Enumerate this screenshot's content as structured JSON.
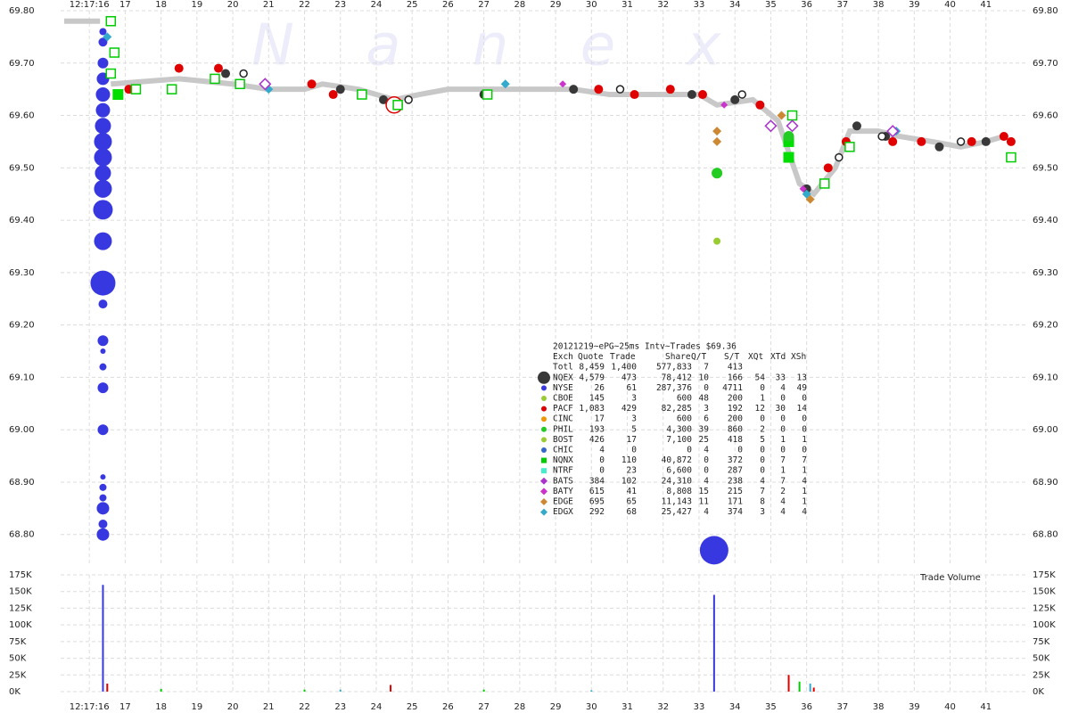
{
  "chart_data": [
    {
      "type": "scatter",
      "watermark": "N a n e x",
      "grid": true,
      "xlim": [
        15.2,
        42.1
      ],
      "xticks": [
        {
          "value": 16,
          "label": "12:17:16"
        },
        17,
        18,
        19,
        20,
        21,
        22,
        23,
        24,
        25,
        26,
        27,
        28,
        29,
        30,
        31,
        32,
        33,
        34,
        35,
        36,
        37,
        38,
        39,
        40,
        41
      ],
      "ylim": [
        68.74,
        69.8
      ],
      "yticks": [
        {
          "value": 68.8,
          "label": "68.80"
        },
        {
          "value": 68.9,
          "label": "68.90"
        },
        {
          "value": 69.0,
          "label": "69.00"
        },
        {
          "value": 69.1,
          "label": "69.10"
        },
        {
          "value": 69.2,
          "label": "69.20"
        },
        {
          "value": 69.3,
          "label": "69.30"
        },
        {
          "value": 69.4,
          "label": "69.40"
        },
        {
          "value": 69.5,
          "label": "69.50"
        },
        {
          "value": 69.6,
          "label": "69.60"
        },
        {
          "value": 69.7,
          "label": "69.70"
        },
        {
          "value": 69.8,
          "label": "69.80"
        }
      ],
      "series": [
        {
          "marker": "line",
          "color": "#c8c8c8",
          "line_width": 6,
          "x": [
            15.3,
            16.3,
            16.4,
            16.6,
            18.5,
            20,
            21,
            22,
            22.5,
            23.5,
            24.5,
            25.2,
            26,
            27,
            29.5,
            30.5,
            33,
            33.5,
            34.5,
            35.2,
            35.5,
            35.8,
            36.2,
            36.8,
            37.2,
            38,
            38.6,
            39.5,
            40.3,
            41,
            41.5
          ],
          "values": [
            69.78,
            69.78,
            null,
            69.66,
            69.67,
            69.66,
            69.65,
            69.65,
            69.66,
            69.65,
            69.63,
            69.64,
            69.65,
            69.65,
            69.65,
            69.64,
            69.64,
            69.62,
            69.63,
            69.59,
            69.53,
            69.47,
            69.45,
            69.5,
            69.57,
            69.57,
            69.56,
            69.55,
            69.54,
            69.55,
            69.56
          ]
        },
        {
          "marker": "circle",
          "color": "#3838e0",
          "x": [
            16.38,
            16.38,
            16.38,
            16.38,
            16.38,
            16.38,
            16.38,
            16.38,
            16.38,
            16.38,
            16.38,
            16.38,
            16.38,
            16.38,
            16.38,
            16.38,
            16.38,
            16.38,
            16.38,
            16.38,
            16.38,
            16.38,
            16.38,
            16.38,
            16.38,
            16.38,
            33.42
          ],
          "values": [
            69.76,
            69.74,
            69.7,
            69.67,
            69.64,
            69.61,
            69.58,
            69.55,
            69.52,
            69.49,
            69.46,
            69.42,
            69.36,
            69.28,
            69.24,
            69.17,
            69.15,
            69.12,
            69.08,
            69.0,
            68.91,
            68.89,
            68.87,
            68.85,
            68.82,
            68.8,
            68.77
          ],
          "sizes": [
            4,
            5,
            6,
            7,
            8,
            8,
            9,
            10,
            10,
            9,
            10,
            11,
            10,
            14,
            5,
            6,
            3,
            4,
            6,
            6,
            3,
            4,
            4,
            7,
            5,
            7,
            16
          ]
        },
        {
          "marker": "circle",
          "color": "#383838",
          "size": 5,
          "x": [
            19.8,
            23,
            24.2,
            27,
            29.5,
            32.8,
            34,
            36,
            37.4,
            38.2,
            39.7,
            41
          ],
          "values": [
            69.68,
            69.65,
            69.63,
            69.64,
            69.65,
            69.64,
            69.63,
            69.46,
            69.58,
            69.56,
            69.54,
            69.55
          ]
        },
        {
          "marker": "circle",
          "color": "#e00000",
          "size": 5,
          "x": [
            17.1,
            18.5,
            19.6,
            22.2,
            22.8,
            30.2,
            31.2,
            32.2,
            33.1,
            34.7,
            35.5,
            36.6,
            37.1,
            38.4,
            39.2,
            40.6,
            41.5,
            41.7
          ],
          "values": [
            69.65,
            69.69,
            69.69,
            69.66,
            69.64,
            69.65,
            69.64,
            69.65,
            69.64,
            69.62,
            69.56,
            69.5,
            69.55,
            69.55,
            69.55,
            69.55,
            69.56,
            69.55
          ]
        },
        {
          "marker": "circle",
          "color": "#e00000",
          "size": 9,
          "hollow": true,
          "x": [
            24.5
          ],
          "values": [
            69.62
          ]
        },
        {
          "marker": "circle",
          "color": "#222222",
          "size": 4,
          "hollow": true,
          "x": [
            20.3,
            24.9,
            30.8,
            34.2,
            36.9,
            38.1,
            40.3
          ],
          "values": [
            69.68,
            69.63,
            69.65,
            69.64,
            69.52,
            69.56,
            69.55
          ]
        },
        {
          "marker": "square",
          "color": "#00cc00",
          "size": 5,
          "hollow": true,
          "x": [
            16.6,
            16.7,
            16.6,
            17.3,
            18.3,
            19.5,
            20.2,
            23.6,
            24.6,
            27.1,
            35.6,
            36.5,
            37.2,
            41.7
          ],
          "values": [
            69.78,
            69.72,
            69.68,
            69.65,
            69.65,
            69.67,
            69.66,
            69.64,
            69.62,
            69.64,
            69.6,
            69.47,
            69.54,
            69.52
          ]
        },
        {
          "marker": "square",
          "color": "#00dd00",
          "size": 6,
          "x": [
            16.8,
            35.5,
            35.5
          ],
          "values": [
            69.64,
            69.52,
            69.55
          ]
        },
        {
          "marker": "circle",
          "color": "#22cc22",
          "size": 6,
          "x": [
            33.5,
            35.5
          ],
          "values": [
            69.49,
            69.56
          ]
        },
        {
          "marker": "circle",
          "color": "#99cc33",
          "size": 4,
          "x": [
            33.5
          ],
          "values": [
            69.36
          ]
        },
        {
          "marker": "diamond",
          "color": "#cc8833",
          "size": 5,
          "x": [
            33.5,
            33.5,
            35.3,
            36.1
          ],
          "values": [
            69.55,
            69.57,
            69.6,
            69.44
          ]
        },
        {
          "marker": "diamond",
          "color": "#33aacc",
          "size": 5,
          "x": [
            16.5,
            21,
            27.6,
            36,
            38.5
          ],
          "values": [
            69.75,
            69.65,
            69.66,
            69.45,
            69.57
          ]
        },
        {
          "marker": "diamond",
          "color": "#aa33cc",
          "size": 6,
          "hollow": true,
          "x": [
            20.9,
            35,
            35.6,
            38.4
          ],
          "values": [
            69.66,
            69.58,
            69.58,
            69.57
          ]
        },
        {
          "marker": "diamond",
          "color": "#cc33cc",
          "size": 4,
          "x": [
            29.2,
            33.7,
            35.9
          ],
          "values": [
            69.66,
            69.62,
            69.46
          ]
        }
      ]
    },
    {
      "type": "bar",
      "title": "Trade Volume",
      "grid": true,
      "xlim": [
        15.2,
        42.1
      ],
      "xticks": [
        {
          "value": 16,
          "label": "12:17:16"
        },
        17,
        18,
        19,
        20,
        21,
        22,
        23,
        24,
        25,
        26,
        27,
        28,
        29,
        30,
        31,
        32,
        33,
        34,
        35,
        36,
        37,
        38,
        39,
        40,
        41
      ],
      "ylim": [
        0,
        175000
      ],
      "yticks": [
        {
          "value": 0,
          "label": "0K"
        },
        {
          "value": 25000,
          "label": "25K"
        },
        {
          "value": 50000,
          "label": "50K"
        },
        {
          "value": 75000,
          "label": "75K"
        },
        {
          "value": 100000,
          "label": "100K"
        },
        {
          "value": 125000,
          "label": "125K"
        },
        {
          "value": 150000,
          "label": "150K"
        },
        {
          "value": 175000,
          "label": "175K"
        }
      ],
      "series": [
        {
          "color": "#3838e0",
          "x": [
            16.38,
            33.42
          ],
          "values": [
            160000,
            145000
          ]
        },
        {
          "color": "#e00000",
          "x": [
            16.5,
            24.4,
            35.5,
            36.2
          ],
          "values": [
            12000,
            10000,
            25000,
            6000
          ]
        },
        {
          "color": "#00cc00",
          "x": [
            18,
            22,
            27,
            35.8
          ],
          "values": [
            4000,
            3000,
            3000,
            15000
          ]
        },
        {
          "color": "#33aacc",
          "x": [
            23,
            30,
            36.1
          ],
          "values": [
            3000,
            2000,
            12000
          ]
        }
      ]
    }
  ],
  "stats_table": {
    "title": "20121219~ePG~25ms Intv~Trades $69.36",
    "header": [
      "Exch",
      "Quote",
      "Trade",
      "Share",
      "Q/T",
      "S/T",
      "XQt",
      "XTd",
      "XSh"
    ],
    "rows": [
      {
        "cells": [
          "Totl",
          "8,459",
          "1,400",
          "577,833",
          "7",
          "413"
        ]
      },
      {
        "cells": [
          "NQEX",
          "4,579",
          "473",
          "78,412",
          "10",
          "166",
          "54",
          "33",
          "13"
        ],
        "color": "#383838",
        "marker": "circle",
        "size": 7
      },
      {
        "cells": [
          "NYSE",
          "26",
          "61",
          "287,376",
          "0",
          "4711",
          "0",
          "4",
          "49"
        ],
        "color": "#3838e0",
        "marker": "circle",
        "size": 3
      },
      {
        "cells": [
          "CBOE",
          "145",
          "3",
          "600",
          "48",
          "200",
          "1",
          "0",
          "0"
        ],
        "color": "#99cc33",
        "marker": "circle",
        "size": 3
      },
      {
        "cells": [
          "PACF",
          "1,083",
          "429",
          "82,285",
          "3",
          "192",
          "12",
          "30",
          "14"
        ],
        "color": "#e00000",
        "marker": "circle",
        "size": 3
      },
      {
        "cells": [
          "CINC",
          "17",
          "3",
          "600",
          "6",
          "200",
          "0",
          "0",
          "0"
        ],
        "color": "#ee9900",
        "marker": "circle",
        "size": 3
      },
      {
        "cells": [
          "PHIL",
          "193",
          "5",
          "4,300",
          "39",
          "860",
          "2",
          "0",
          "0"
        ],
        "color": "#22cc22",
        "marker": "circle",
        "size": 3
      },
      {
        "cells": [
          "BOST",
          "426",
          "17",
          "7,100",
          "25",
          "418",
          "5",
          "1",
          "1"
        ],
        "color": "#99cc33",
        "marker": "circle",
        "size": 3
      },
      {
        "cells": [
          "CHIC",
          "4",
          "0",
          "0",
          "4",
          "0",
          "0",
          "0",
          "0"
        ],
        "color": "#3366cc",
        "marker": "circle",
        "size": 3
      },
      {
        "cells": [
          "NQNX",
          "0",
          "110",
          "40,872",
          "0",
          "372",
          "0",
          "7",
          "7"
        ],
        "color": "#00cc00",
        "marker": "square",
        "size": 3
      },
      {
        "cells": [
          "NTRF",
          "0",
          "23",
          "6,600",
          "0",
          "287",
          "0",
          "1",
          "1"
        ],
        "color": "#44eecc",
        "marker": "square",
        "size": 3
      },
      {
        "cells": [
          "BATS",
          "384",
          "102",
          "24,310",
          "4",
          "238",
          "4",
          "7",
          "4"
        ],
        "color": "#aa33cc",
        "marker": "diamond",
        "size": 4
      },
      {
        "cells": [
          "BATY",
          "615",
          "41",
          "8,808",
          "15",
          "215",
          "7",
          "2",
          "1"
        ],
        "color": "#cc33cc",
        "marker": "diamond",
        "size": 4
      },
      {
        "cells": [
          "EDGE",
          "695",
          "65",
          "11,143",
          "11",
          "171",
          "8",
          "4",
          "1"
        ],
        "color": "#cc8833",
        "marker": "diamond",
        "size": 4
      },
      {
        "cells": [
          "EDGX",
          "292",
          "68",
          "25,427",
          "4",
          "374",
          "3",
          "4",
          "4"
        ],
        "color": "#33aacc",
        "marker": "diamond",
        "size": 4
      }
    ]
  }
}
